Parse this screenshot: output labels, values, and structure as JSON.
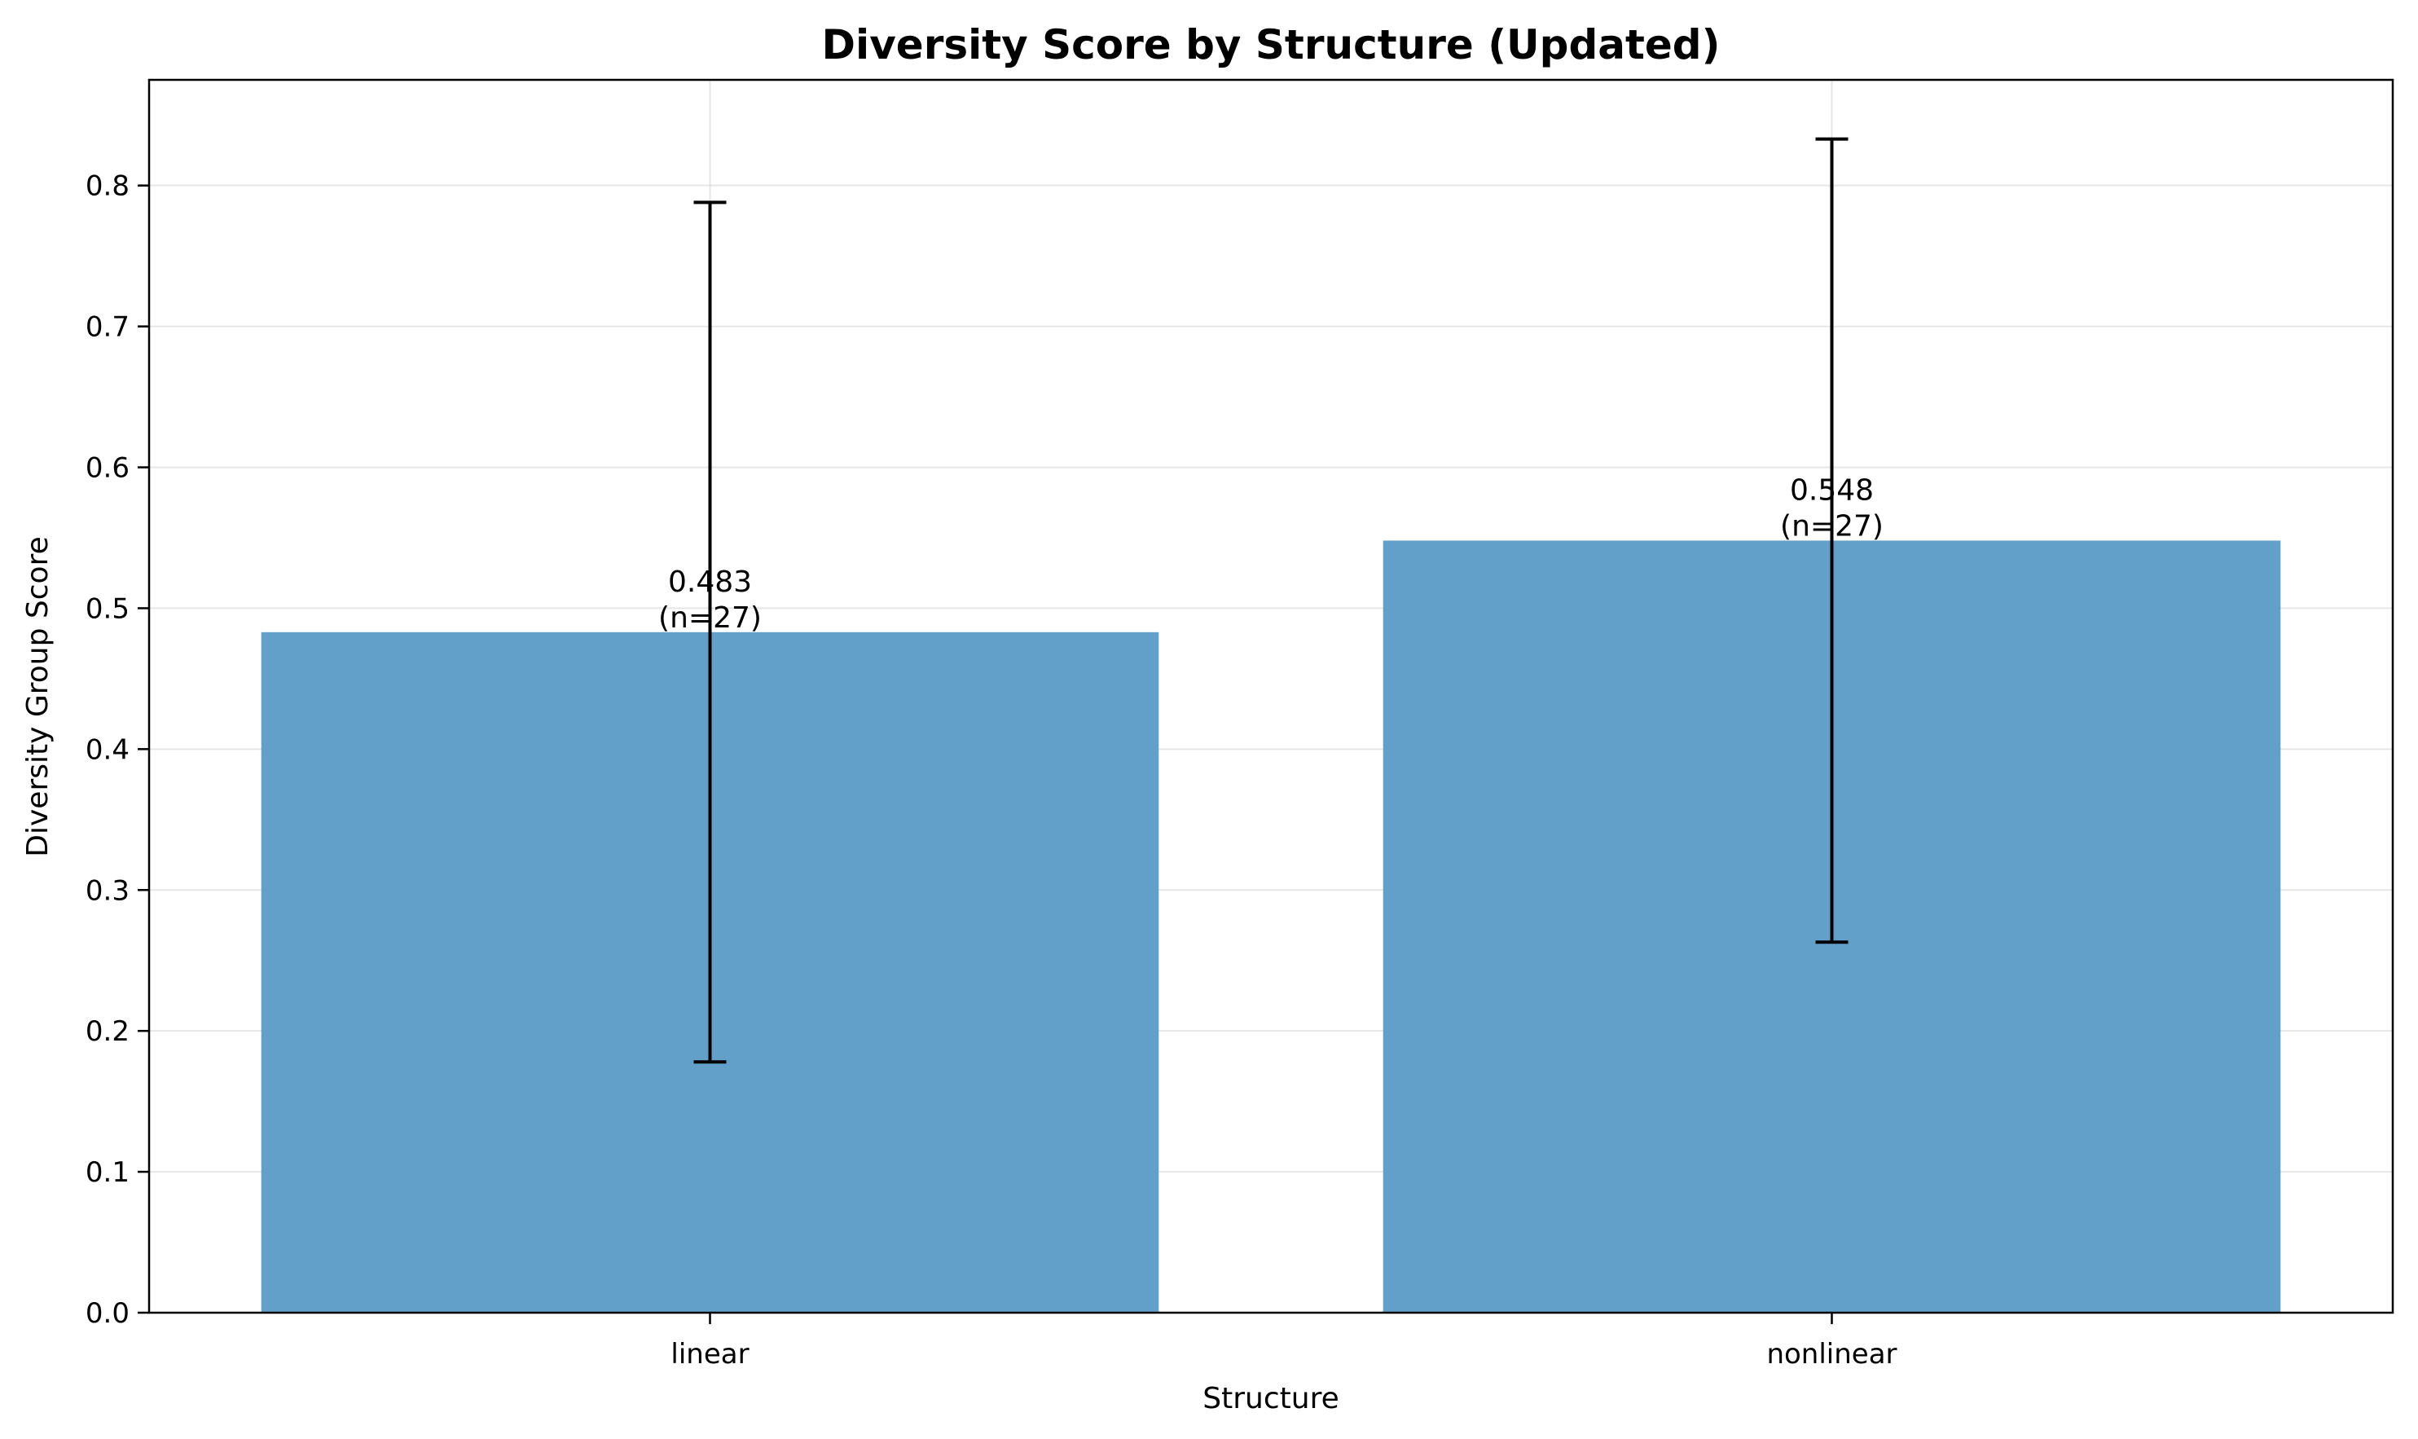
{
  "chart_data": {
    "type": "bar",
    "title": "Diversity Score by Structure (Updated)",
    "xlabel": "Structure",
    "ylabel": "Diversity Group Score",
    "categories": [
      "linear",
      "nonlinear"
    ],
    "values": [
      0.483,
      0.548
    ],
    "error_low": [
      0.178,
      0.263
    ],
    "error_high": [
      0.788,
      0.833
    ],
    "data_labels": [
      "0.483",
      "0.548"
    ],
    "count_labels": [
      "(n=27)",
      "(n=27)"
    ],
    "ylim": [
      0,
      0.875
    ],
    "yticks": [
      "0.0",
      "0.1",
      "0.2",
      "0.3",
      "0.4",
      "0.5",
      "0.6",
      "0.7",
      "0.8"
    ],
    "grid": true,
    "legend": "none",
    "bar_color": "#62a0ca",
    "error_color": "#000000"
  }
}
